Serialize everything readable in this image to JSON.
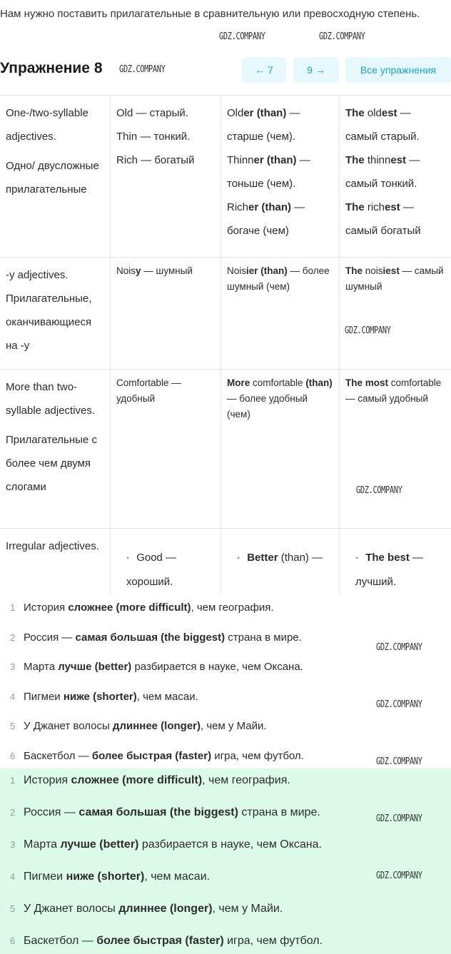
{
  "intro": "Нам нужно поставить прилагательные в сравнительную или превосходную степень.",
  "title": "Упражнение 8",
  "nav": {
    "prev": "← 7",
    "next": "9 →",
    "all": "Все упражнения",
    "accent": "#1aa5c7"
  },
  "watermark": "GDZ.COMPANY",
  "table": [
    {
      "small": false,
      "cells": [
        [
          [
            [
              "One-/two-syllable adjectives.",
              0
            ]
          ],
          [
            [
              "Одно/ двусложные прилагательные",
              0
            ]
          ]
        ],
        [
          [
            [
              "Old — старый.",
              0
            ]
          ],
          [
            [
              "Thin — тонкий.",
              0
            ]
          ],
          [
            [
              "Rich — богатый",
              0
            ]
          ]
        ],
        [
          [
            [
              "Old",
              0
            ],
            [
              "er (than)",
              1
            ],
            [
              " — старше (чем).",
              0
            ]
          ],
          [
            [
              "Thinn",
              0
            ],
            [
              "er (than)",
              1
            ],
            [
              " — тоньше (чем).",
              0
            ]
          ],
          [
            [
              "Rich",
              0
            ],
            [
              "er (than)",
              1
            ],
            [
              " — богаче (чем)",
              0
            ]
          ]
        ],
        [
          [
            [
              "The",
              1
            ],
            [
              " old",
              0
            ],
            [
              "est",
              1
            ],
            [
              " — самый старый.",
              0
            ]
          ],
          [
            [
              "The",
              1
            ],
            [
              " thinn",
              0
            ],
            [
              "est",
              1
            ],
            [
              " — самый тонкий.",
              0
            ]
          ],
          [
            [
              "The",
              1
            ],
            [
              " rich",
              0
            ],
            [
              "est",
              1
            ],
            [
              " — самый богатый",
              0
            ]
          ]
        ]
      ]
    },
    {
      "small": true,
      "cells": [
        [
          [
            [
              "-y adjectives. Прилагательные, оканчивающиеся на -y",
              0
            ]
          ]
        ],
        [
          [
            [
              "Nois",
              0
            ],
            [
              "y",
              1
            ],
            [
              " — шумный",
              0
            ]
          ]
        ],
        [
          [
            [
              "Nois",
              0
            ],
            [
              "ier (than)",
              1
            ],
            [
              " — более шумный (чем)",
              0
            ]
          ]
        ],
        [
          [
            [
              "The",
              1
            ],
            [
              " nois",
              0
            ],
            [
              "iest",
              1
            ],
            [
              " — самый шумный",
              0
            ]
          ]
        ]
      ]
    },
    {
      "small": true,
      "cells": [
        [
          [
            [
              "More than two-syllable adjectives.",
              0
            ]
          ],
          [
            [
              "Прилагательные с более чем двумя слогами",
              0
            ]
          ]
        ],
        [
          [
            [
              "Comfortable — удобный",
              0
            ]
          ]
        ],
        [
          [
            [
              "More",
              1
            ],
            [
              " comfortable ",
              0
            ],
            [
              "(than)",
              1
            ],
            [
              " — более удобный (чем)",
              0
            ]
          ]
        ],
        [
          [
            [
              "The most",
              1
            ],
            [
              " comfortable — самый удобный",
              0
            ]
          ]
        ]
      ]
    },
    {
      "small": false,
      "cells": [
        [
          [
            [
              "Irregular adjectives.",
              0
            ]
          ]
        ],
        [
          [
            [
              "Good — хороший.",
              0
            ]
          ]
        ],
        [
          [
            [
              "Better",
              1
            ],
            [
              " (than) —",
              0
            ]
          ]
        ],
        [
          [
            [
              "The best",
              1
            ],
            [
              " — лучший.",
              0
            ]
          ]
        ]
      ]
    }
  ],
  "sentences": [
    [
      [
        "История ",
        0
      ],
      [
        "сложнее (more difficult)",
        1
      ],
      [
        ", чем география.",
        0
      ]
    ],
    [
      [
        "Россия — ",
        0
      ],
      [
        "самая большая (the biggest)",
        1
      ],
      [
        " страна в мире.",
        0
      ]
    ],
    [
      [
        "Марта ",
        0
      ],
      [
        "лучше (better)",
        1
      ],
      [
        " разбирается в науке, чем Оксана.",
        0
      ]
    ],
    [
      [
        "Пигмеи ",
        0
      ],
      [
        "ниже (shorter)",
        1
      ],
      [
        ", чем масаи.",
        0
      ]
    ],
    [
      [
        "У Джанет волосы ",
        0
      ],
      [
        "длиннее (longer)",
        1
      ],
      [
        ", чем у Майи.",
        0
      ]
    ],
    [
      [
        "Баскетбол — ",
        0
      ],
      [
        "более быстрая (faster)",
        1
      ],
      [
        " игра, чем футбол.",
        0
      ]
    ]
  ],
  "answer_bg": "#dcfce9"
}
